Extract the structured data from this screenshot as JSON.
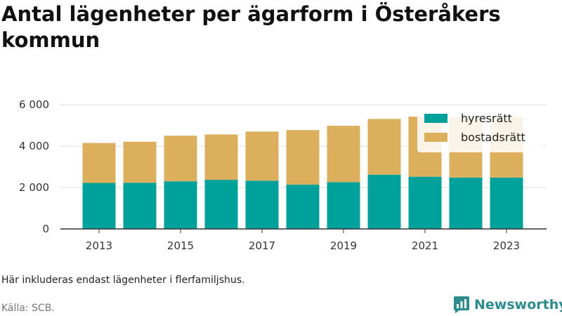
{
  "header": {
    "title": "Antal lägenheter per ägarform i Österåkers kommun"
  },
  "footer": {
    "note": "Här inkluderas endast lägenheter i flerfamiljshus.",
    "source": "Källa: SCB.",
    "brand": "Newsworthy",
    "brand_icon": "chart-logo-icon"
  },
  "colors": {
    "hyresratt": "#00a19a",
    "bostadsratt": "#dbaf5c",
    "grid": "#dddddd",
    "axis": "#333333",
    "brand": "#2e8b8b"
  },
  "chart_data": {
    "type": "bar",
    "stacked": true,
    "categories": [
      "2013",
      "2014",
      "2015",
      "2016",
      "2017",
      "2018",
      "2019",
      "2020",
      "2021",
      "2022",
      "2023"
    ],
    "x_tick_labels": [
      "2013",
      "2015",
      "2017",
      "2019",
      "2021",
      "2023"
    ],
    "y_tick_labels": [
      "0",
      "2 000",
      "4 000",
      "6 000"
    ],
    "y_ticks": [
      0,
      2000,
      4000,
      6000
    ],
    "ylim": [
      0,
      6000
    ],
    "grid": true,
    "legend_position": "top-right",
    "series": [
      {
        "name": "hyresrätt",
        "values": [
          2220,
          2230,
          2300,
          2370,
          2330,
          2140,
          2260,
          2620,
          2520,
          2480,
          2480
        ]
      },
      {
        "name": "bostadsrätt",
        "values": [
          1930,
          1980,
          2200,
          2190,
          2370,
          2630,
          2720,
          2690,
          2900,
          2920,
          2920
        ]
      }
    ]
  }
}
